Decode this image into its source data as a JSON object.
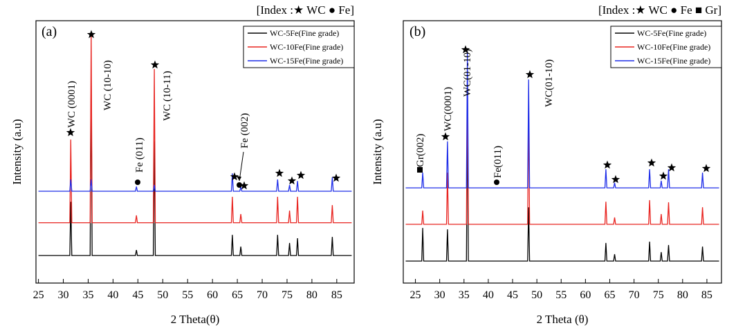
{
  "chart_data": [
    {
      "type": "line",
      "title": "[Index :★ WC ● Fe]",
      "panel_label": "(a)",
      "x_label": "2 Theta(θ)",
      "y_label": "Intensity (a.u)",
      "xlim": [
        24.5,
        88.5
      ],
      "ylim": [
        0,
        100
      ],
      "xticks": [
        25,
        30,
        35,
        40,
        45,
        50,
        55,
        60,
        65,
        70,
        75,
        80,
        85
      ],
      "legend": "upper right",
      "annotations": [
        "WC (0001)",
        "WC (10-10)",
        "Fe (011)",
        "WC (10-11)",
        "Fe (002)"
      ],
      "x": [
        25,
        31.3,
        31.5,
        31.7,
        35.4,
        35.6,
        35.8,
        44.5,
        44.7,
        44.9,
        48.1,
        48.3,
        48.5,
        63.8,
        64.0,
        64.2,
        65.5,
        65.7,
        65.9,
        72.9,
        73.1,
        73.3,
        75.3,
        75.5,
        75.7,
        76.9,
        77.1,
        77.3,
        83.9,
        84.1,
        84.3,
        88
      ],
      "series": [
        {
          "name": "WC-5Fe(Fine grade)",
          "color": "#000000",
          "values": [
            10.5,
            10.5,
            31,
            10.5,
            10.5,
            79.5,
            10.5,
            10.5,
            12.6,
            10.5,
            10.5,
            54,
            10.5,
            10.5,
            18.4,
            10.5,
            10.5,
            13.9,
            10.5,
            10.5,
            18.4,
            10.5,
            10.5,
            15.3,
            10.5,
            10.5,
            17.1,
            10.5,
            10.5,
            17.6,
            10.5,
            10.5
          ]
        },
        {
          "name": "WC-10Fe(Fine grade)",
          "color": "#e8231f",
          "values": [
            23,
            23,
            54.7,
            23,
            23,
            95.3,
            23,
            23,
            25.8,
            23,
            23,
            81.6,
            23,
            23,
            32.9,
            23,
            23,
            26.3,
            23,
            23,
            32.9,
            23,
            23,
            27.6,
            23,
            23,
            32.9,
            23,
            23,
            29.7,
            23,
            23
          ]
        },
        {
          "name": "WC-15Fe(Fine grade)",
          "color": "#1f2ee8",
          "values": [
            35,
            35,
            39.5,
            35,
            35,
            39.5,
            35,
            35,
            36.8,
            35,
            35,
            37.4,
            35,
            35,
            41.8,
            35,
            35,
            36.8,
            35,
            35,
            39.5,
            35,
            35,
            37.4,
            35,
            35,
            38.9,
            35,
            35,
            40.3,
            35,
            35
          ]
        }
      ]
    },
    {
      "type": "line",
      "title": "[Index :★ WC ● Fe ■ Gr]",
      "panel_label": "(b)",
      "x_label": "2 Theta (θ)",
      "y_label": "Intensity (a.u)",
      "xlim": [
        22.5,
        88
      ],
      "ylim": [
        0,
        100
      ],
      "xticks": [
        25,
        30,
        35,
        40,
        45,
        50,
        55,
        60,
        65,
        70,
        75,
        80,
        85
      ],
      "legend": "upper right",
      "annotations": [
        "Gr(002)",
        "WC(0001)",
        "WC(01-10)",
        "Fe(011)",
        "WC(01-10)"
      ],
      "x": [
        23,
        26.3,
        26.5,
        26.7,
        31.4,
        31.6,
        31.8,
        35.5,
        35.7,
        35.9,
        48.1,
        48.3,
        48.5,
        64.0,
        64.2,
        64.4,
        65.8,
        66.0,
        66.2,
        73.0,
        73.2,
        73.4,
        75.4,
        75.6,
        75.8,
        76.9,
        77.1,
        77.3,
        83.9,
        84.1,
        84.3,
        87.5
      ],
      "series": [
        {
          "name": "WC-5Fe(Fine grade)",
          "color": "#000000",
          "values": [
            8.4,
            8.4,
            21,
            8.4,
            8.4,
            20.5,
            8.4,
            8.4,
            65.8,
            8.4,
            8.4,
            28.9,
            8.4,
            8.4,
            15.3,
            8.4,
            8.4,
            11,
            8.4,
            8.4,
            15.8,
            8.4,
            8.4,
            11.8,
            8.4,
            8.4,
            14.5,
            8.4,
            8.4,
            13.9,
            8.4,
            8.4
          ]
        },
        {
          "name": "WC-10Fe(Fine grade)",
          "color": "#e8231f",
          "values": [
            22.4,
            22.4,
            27.6,
            22.4,
            22.4,
            42.1,
            22.4,
            22.4,
            79,
            22.4,
            22.4,
            68.4,
            22.4,
            22.4,
            31,
            22.4,
            22.4,
            25,
            22.4,
            22.4,
            31.6,
            22.4,
            22.4,
            26.3,
            22.4,
            22.4,
            30.8,
            22.4,
            22.4,
            28.9,
            22.4,
            22.4
          ]
        },
        {
          "name": "WC-15Fe(Fine grade)",
          "color": "#1f2ee8",
          "values": [
            36.3,
            36.3,
            42.1,
            36.3,
            36.3,
            54,
            36.3,
            36.3,
            88.2,
            36.3,
            36.3,
            77.6,
            36.3,
            36.3,
            43.4,
            36.3,
            36.3,
            38.2,
            36.3,
            36.3,
            43.4,
            36.3,
            36.3,
            39,
            36.3,
            36.3,
            43.4,
            36.3,
            36.3,
            42.1,
            36.3,
            36.3
          ]
        }
      ]
    }
  ]
}
